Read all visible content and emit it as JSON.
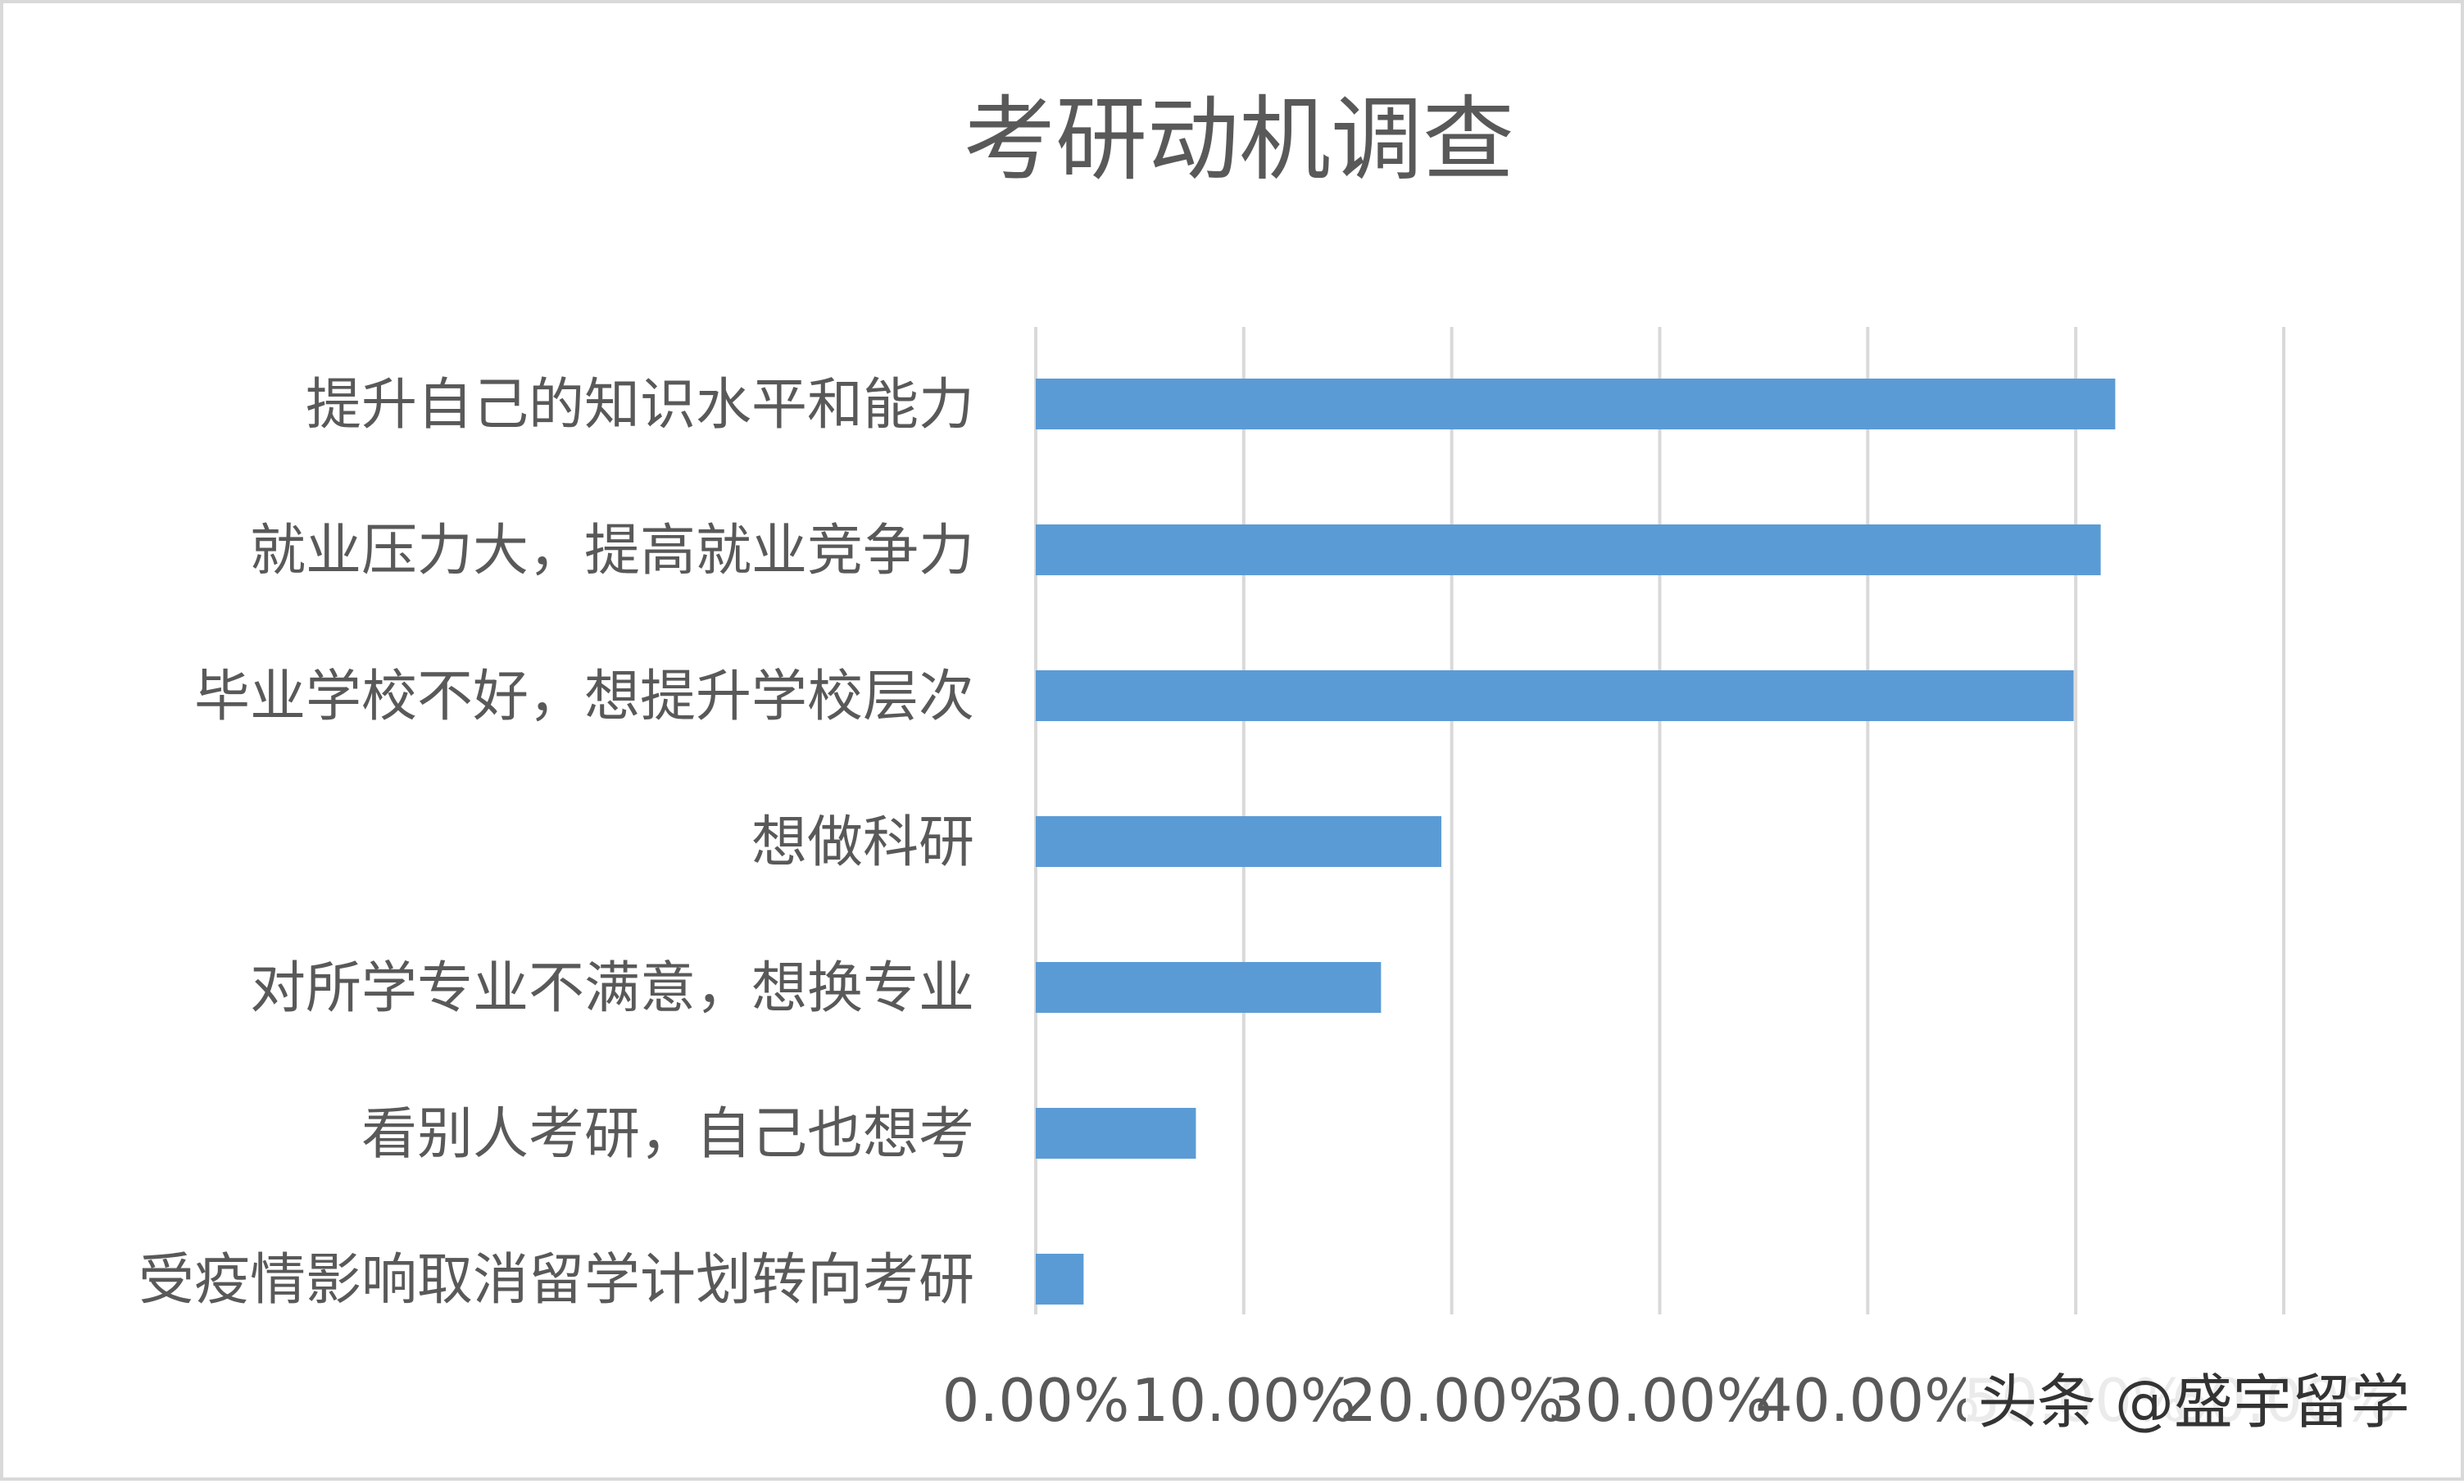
{
  "chart_data": {
    "type": "bar",
    "orientation": "horizontal",
    "title": "考研动机调查",
    "xlabel": "",
    "ylabel": "",
    "categories": [
      "提升自己的知识水平和能力",
      "就业压力大，提高就业竞争力",
      "毕业学校不好，想提升学校层次",
      "想做科研",
      "对所学专业不满意，想换专业",
      "看别人考研，自己也想考",
      "受疫情影响取消留学计划转向考研"
    ],
    "values": [
      51.9,
      51.2,
      49.9,
      19.5,
      16.6,
      7.7,
      2.3
    ],
    "xlim": [
      0,
      60
    ],
    "xticks": [
      0,
      10,
      20,
      30,
      40,
      50,
      60
    ],
    "xtick_labels": [
      "0.00%",
      "10.00%",
      "20.00%",
      "30.00%",
      "40.00%",
      "50.00%",
      "60.00%"
    ],
    "grid": true,
    "legend": "none",
    "bar_color": "#5b9bd5",
    "grid_color": "#d9d9d9",
    "text_color": "#595959"
  },
  "watermark": "头条 @盛宇留学"
}
